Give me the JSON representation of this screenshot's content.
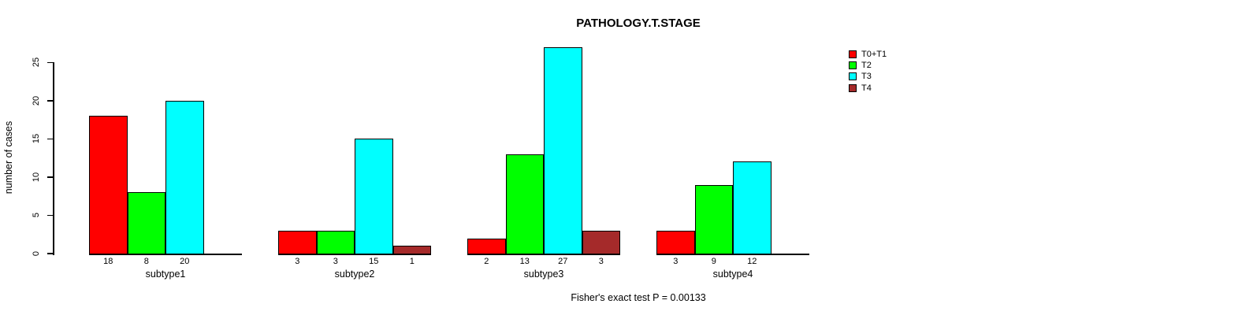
{
  "title": "PATHOLOGY.T.STAGE",
  "footer_note": "Fisher's exact test P = 0.00133",
  "chart_data": {
    "type": "bar",
    "title": "PATHOLOGY.T.STAGE",
    "ylabel": "number of cases",
    "xlabel": "",
    "yticks": [
      0,
      5,
      10,
      15,
      20,
      25
    ],
    "ylim": [
      0,
      25
    ],
    "grid": false,
    "legend_position": "top-right",
    "annotation": "Fisher's exact test P = 0.00133",
    "categories": [
      "subtype1",
      "subtype2",
      "subtype3",
      "subtype4"
    ],
    "series": [
      {
        "name": "T0+T1",
        "color": "#ff0000",
        "values": [
          18,
          3,
          2,
          3
        ]
      },
      {
        "name": "T2",
        "color": "#00ff00",
        "values": [
          8,
          3,
          13,
          9
        ]
      },
      {
        "name": "T3",
        "color": "#00ffff",
        "values": [
          20,
          15,
          27,
          12
        ]
      },
      {
        "name": "T4",
        "color": "#a52a2a",
        "values": [
          0,
          1,
          3,
          0
        ]
      }
    ],
    "value_labels_shown_only_for_nonzero": true
  },
  "colors": {
    "axis": "#000000",
    "background": "#ffffff",
    "t0t1": "#ff0000",
    "t2": "#00ff00",
    "t3": "#00ffff",
    "t4": "#a52a2a"
  }
}
